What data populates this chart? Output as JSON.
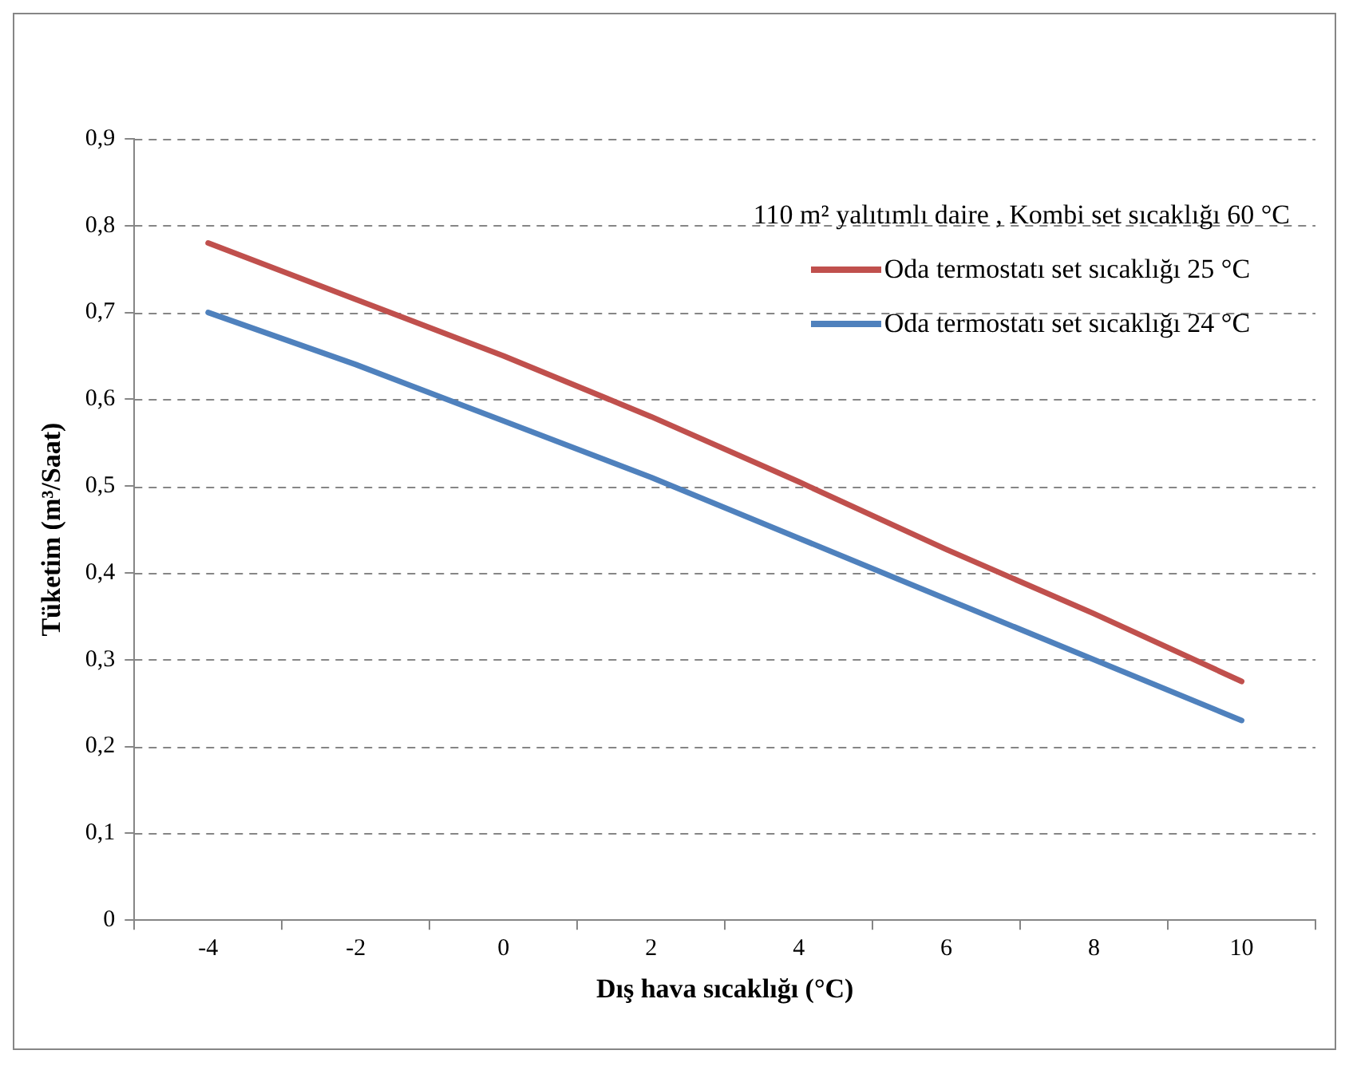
{
  "chart_data": {
    "type": "line",
    "xlabel": "Dış hava sıcaklığı (°C)",
    "ylabel": "Tüketim (m³/Saat)",
    "legend_title": "110 m² yalıtımlı daire , Kombi set sıcaklığı 60 °C",
    "categories": [
      "-4",
      "-2",
      "0",
      "2",
      "4",
      "6",
      "8",
      "10"
    ],
    "series": [
      {
        "name": "Oda termostatı set sıcaklığı 25 °C",
        "color": "#c0504d",
        "values": [
          0.78,
          0.715,
          0.65,
          0.58,
          0.505,
          0.427,
          0.353,
          0.275
        ]
      },
      {
        "name": "Oda termostatı set sıcaklığı 24 °C",
        "color": "#4f81bd",
        "values": [
          0.7,
          0.64,
          0.575,
          0.51,
          0.44,
          0.37,
          0.3,
          0.23
        ]
      }
    ],
    "ylim": [
      0,
      0.9
    ],
    "yticks": [
      0,
      {
        "value": 0.1,
        "label": "0,1"
      },
      {
        "value": 0.2,
        "label": "0,2"
      },
      {
        "value": 0.3,
        "label": "0,3"
      },
      {
        "value": 0.4,
        "label": "0,4"
      },
      {
        "value": 0.5,
        "label": "0,5"
      },
      {
        "value": 0.6,
        "label": "0,6"
      },
      {
        "value": 0.7,
        "label": "0,7"
      },
      {
        "value": 0.8,
        "label": "0,8"
      },
      {
        "value": 0.9,
        "label": "0,9"
      }
    ],
    "grid": "y",
    "legend": "top right",
    "marker": "none",
    "line_style": "solid"
  }
}
